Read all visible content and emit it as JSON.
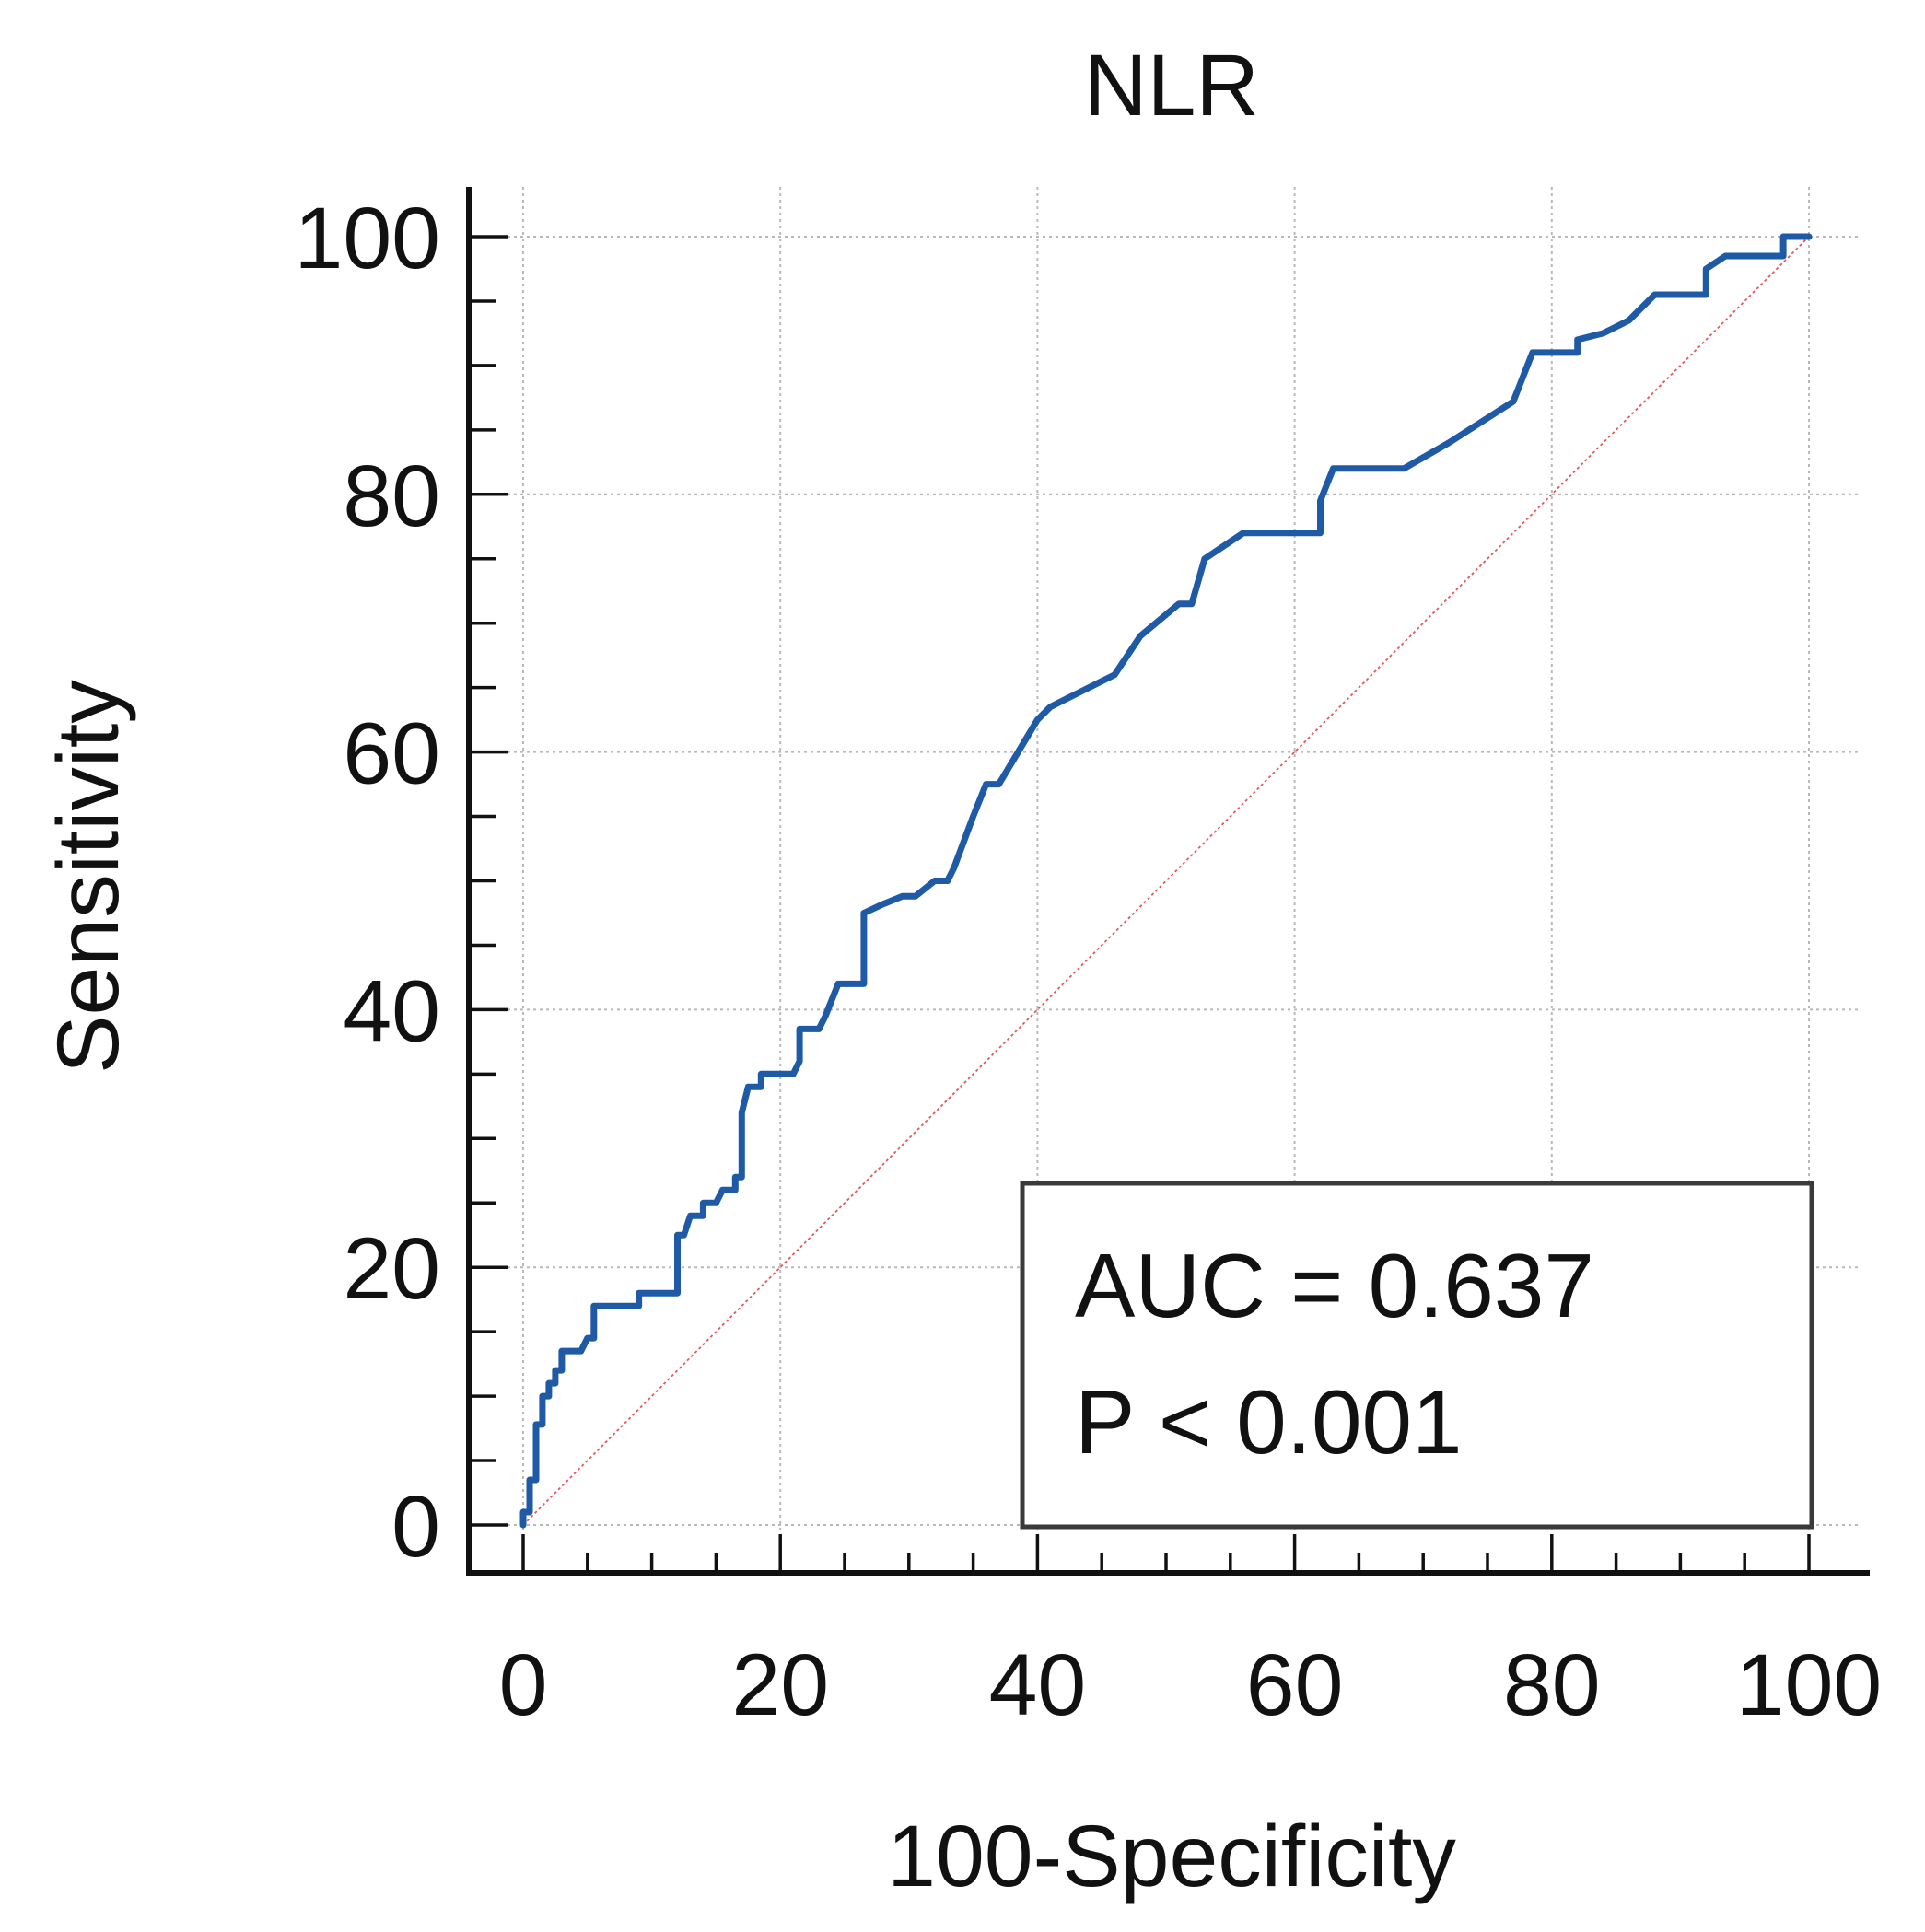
{
  "chart_data": {
    "type": "line",
    "title": "NLR",
    "xlabel": "100-Specificity",
    "ylabel": "Sensitivity",
    "xlim": [
      0,
      100
    ],
    "ylim": [
      0,
      100
    ],
    "x_ticks": [
      "0",
      "20",
      "40",
      "60",
      "80",
      "100"
    ],
    "y_ticks": [
      "0",
      "20",
      "40",
      "60",
      "80",
      "100"
    ],
    "grid": true,
    "minor_tick_step": 5,
    "colors": {
      "roc_curve": "#1f5aa6",
      "reference_line": "#e05a5a"
    },
    "series": [
      {
        "values": [
          [
            0,
            0
          ],
          [
            0,
            1
          ],
          [
            0.5,
            1
          ],
          [
            0.5,
            3.5
          ],
          [
            1,
            3.5
          ],
          [
            1,
            7.8
          ],
          [
            1.5,
            7.8
          ],
          [
            1.5,
            10
          ],
          [
            2,
            10
          ],
          [
            2,
            11
          ],
          [
            2.5,
            11
          ],
          [
            2.5,
            12
          ],
          [
            3,
            12
          ],
          [
            3,
            13.5
          ],
          [
            4.5,
            13.5
          ],
          [
            5,
            14.5
          ],
          [
            5.5,
            14.5
          ],
          [
            5.5,
            17
          ],
          [
            9,
            17
          ],
          [
            9,
            18
          ],
          [
            12,
            18
          ],
          [
            12,
            22.5
          ],
          [
            12.5,
            22.5
          ],
          [
            13,
            24
          ],
          [
            14,
            24
          ],
          [
            14,
            25
          ],
          [
            15,
            25
          ],
          [
            15.5,
            26
          ],
          [
            16.5,
            26
          ],
          [
            16.5,
            27
          ],
          [
            17,
            27
          ],
          [
            17,
            32
          ],
          [
            17.5,
            34
          ],
          [
            18.5,
            34
          ],
          [
            18.5,
            35
          ],
          [
            21,
            35
          ],
          [
            21.5,
            36
          ],
          [
            21.5,
            38.5
          ],
          [
            23,
            38.5
          ],
          [
            23.5,
            39.5
          ],
          [
            24.5,
            42
          ],
          [
            26.5,
            42
          ],
          [
            26.5,
            47.5
          ],
          [
            28,
            48.2
          ],
          [
            29.5,
            48.8
          ],
          [
            30.5,
            48.8
          ],
          [
            32,
            50
          ],
          [
            33,
            50
          ],
          [
            33.5,
            51
          ],
          [
            35,
            55
          ],
          [
            36,
            57.5
          ],
          [
            37,
            57.5
          ],
          [
            40,
            62.5
          ],
          [
            41,
            63.5
          ],
          [
            43,
            64.5
          ],
          [
            46,
            66
          ],
          [
            48,
            69
          ],
          [
            51,
            71.5
          ],
          [
            52,
            71.5
          ],
          [
            53,
            75
          ],
          [
            56,
            77
          ],
          [
            62,
            77
          ],
          [
            62,
            79.5
          ],
          [
            63,
            82
          ],
          [
            68.5,
            82
          ],
          [
            72,
            84
          ],
          [
            77,
            87.2
          ],
          [
            78.5,
            91
          ],
          [
            82,
            91
          ],
          [
            82,
            92
          ],
          [
            84,
            92.5
          ],
          [
            86,
            93.5
          ],
          [
            88,
            95.5
          ],
          [
            92,
            95.5
          ],
          [
            92,
            97.5
          ],
          [
            93.5,
            98.5
          ],
          [
            98,
            98.5
          ],
          [
            98,
            100
          ],
          [
            100,
            100
          ]
        ]
      }
    ],
    "reference_line": [
      [
        0,
        0
      ],
      [
        100,
        100
      ]
    ],
    "annotations": [
      "AUC = 0.637",
      "P < 0.001"
    ],
    "annotation_box_position": "bottom-right"
  }
}
